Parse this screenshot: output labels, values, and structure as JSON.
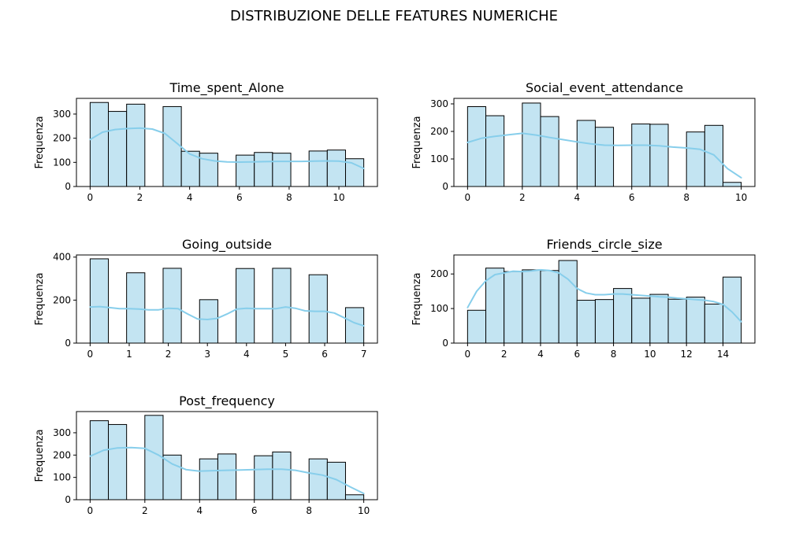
{
  "figure": {
    "suptitle": "DISTRIBUZIONE DELLE FEATURES NUMERICHE"
  },
  "colors": {
    "bar_fill": "#c3e4f2",
    "bar_edge": "#000000",
    "kde": "#87ceeb"
  },
  "chart_data": [
    {
      "type": "bar",
      "title": "Time_spent_Alone",
      "xlabel": "",
      "ylabel": "Frequenza",
      "xlim": [
        -0.55,
        11.55
      ],
      "ylim": [
        0,
        365
      ],
      "xticks": [
        0,
        2,
        4,
        6,
        8,
        10
      ],
      "yticks": [
        0,
        100,
        200,
        300
      ],
      "bin_edges": [
        0,
        0.733,
        1.467,
        2.2,
        2.933,
        3.667,
        4.4,
        5.133,
        5.867,
        6.6,
        7.333,
        8.067,
        8.8,
        9.533,
        10.267,
        11
      ],
      "values": [
        348,
        311,
        341,
        0,
        331,
        146,
        138,
        0,
        130,
        141,
        138,
        0,
        147,
        151,
        115
      ],
      "kde": {
        "x": [
          0,
          0.5,
          1,
          1.5,
          2,
          2.5,
          3,
          3.5,
          4,
          4.5,
          5,
          5.5,
          6,
          6.5,
          7,
          7.5,
          8,
          8.5,
          9,
          9.5,
          10,
          10.5,
          11
        ],
        "y": [
          195,
          225,
          236,
          240,
          242,
          238,
          220,
          178,
          135,
          115,
          106,
          102,
          101,
          102,
          103,
          104,
          104,
          104,
          105,
          106,
          105,
          98,
          75
        ]
      }
    },
    {
      "type": "bar",
      "title": "Social_event_attendance",
      "xlabel": "",
      "ylabel": "Frequenza",
      "xlim": [
        -0.5,
        10.5
      ],
      "ylim": [
        0,
        320
      ],
      "xticks": [
        0,
        2,
        4,
        6,
        8,
        10
      ],
      "yticks": [
        0,
        100,
        200,
        300
      ],
      "bin_edges": [
        0,
        0.667,
        1.333,
        2,
        2.667,
        3.333,
        4,
        4.667,
        5.333,
        6,
        6.667,
        7.333,
        8,
        8.667,
        9.333,
        10
      ],
      "values": [
        290,
        257,
        0,
        303,
        254,
        0,
        240,
        215,
        0,
        227,
        226,
        0,
        198,
        222,
        15
      ],
      "kde": {
        "x": [
          0,
          0.5,
          1,
          1.5,
          2,
          2.5,
          3,
          3.5,
          4,
          4.5,
          5,
          5.5,
          6,
          6.5,
          7,
          7.5,
          8,
          8.5,
          9,
          9.5,
          10
        ],
        "y": [
          160,
          175,
          182,
          188,
          193,
          187,
          178,
          170,
          162,
          155,
          150,
          149,
          150,
          150,
          148,
          143,
          140,
          135,
          115,
          65,
          32
        ]
      }
    },
    {
      "type": "bar",
      "title": "Going_outside",
      "xlabel": "",
      "ylabel": "Frequenza",
      "xlim": [
        -0.35,
        7.35
      ],
      "ylim": [
        0,
        410
      ],
      "xticks": [
        0,
        1,
        2,
        3,
        4,
        5,
        6,
        7
      ],
      "yticks": [
        0,
        200,
        400
      ],
      "bin_edges": [
        0,
        0.467,
        0.933,
        1.4,
        1.867,
        2.333,
        2.8,
        3.267,
        3.733,
        4.2,
        4.667,
        5.133,
        5.6,
        6.067,
        6.533,
        7
      ],
      "values": [
        392,
        0,
        327,
        0,
        348,
        0,
        202,
        0,
        347,
        0,
        348,
        0,
        318,
        0,
        165
      ],
      "kde": {
        "x": [
          0,
          0.25,
          0.5,
          0.75,
          1,
          1.25,
          1.5,
          1.75,
          2,
          2.25,
          2.5,
          2.75,
          3,
          3.25,
          3.5,
          3.75,
          4,
          4.25,
          4.5,
          4.75,
          5,
          5.25,
          5.5,
          5.75,
          6,
          6.25,
          6.5,
          6.75,
          7
        ],
        "y": [
          168,
          170,
          165,
          160,
          160,
          158,
          155,
          155,
          162,
          160,
          135,
          112,
          110,
          115,
          135,
          158,
          162,
          160,
          160,
          160,
          168,
          162,
          150,
          148,
          148,
          140,
          118,
          95,
          80
        ]
      }
    },
    {
      "type": "bar",
      "title": "Friends_circle_size",
      "xlabel": "",
      "ylabel": "Frequenza",
      "xlim": [
        -0.75,
        15.75
      ],
      "ylim": [
        0,
        255
      ],
      "xticks": [
        0,
        2,
        4,
        6,
        8,
        10,
        12,
        14
      ],
      "yticks": [
        0,
        100,
        200
      ],
      "bin_edges": [
        0,
        1,
        2,
        3,
        4,
        5,
        6,
        7,
        8,
        9,
        10,
        11,
        12,
        13,
        14,
        15
      ],
      "values": [
        95,
        217,
        207,
        212,
        210,
        239,
        124,
        126,
        158,
        130,
        141,
        127,
        133,
        113,
        191
      ],
      "kde": {
        "x": [
          0,
          0.5,
          1,
          1.5,
          2,
          2.5,
          3,
          3.5,
          4,
          4.5,
          5,
          5.5,
          6,
          6.5,
          7,
          7.5,
          8,
          8.5,
          9,
          9.5,
          10,
          10.5,
          11,
          11.5,
          12,
          12.5,
          13,
          13.5,
          14,
          14.5,
          15
        ],
        "y": [
          103,
          150,
          180,
          198,
          203,
          208,
          207,
          209,
          212,
          210,
          203,
          185,
          158,
          145,
          140,
          140,
          142,
          142,
          140,
          138,
          136,
          134,
          133,
          130,
          128,
          126,
          124,
          120,
          112,
          90,
          62
        ]
      }
    },
    {
      "type": "bar",
      "title": "Post_frequency",
      "xlabel": "",
      "ylabel": "Frequenza",
      "xlim": [
        -0.5,
        10.5
      ],
      "ylim": [
        0,
        395
      ],
      "xticks": [
        0,
        2,
        4,
        6,
        8,
        10
      ],
      "yticks": [
        0,
        100,
        200,
        300
      ],
      "bin_edges": [
        0,
        0.667,
        1.333,
        2,
        2.667,
        3.333,
        4,
        4.667,
        5.333,
        6,
        6.667,
        7.333,
        8,
        8.667,
        9.333,
        10
      ],
      "values": [
        354,
        337,
        0,
        378,
        200,
        0,
        183,
        205,
        0,
        197,
        214,
        0,
        183,
        168,
        22
      ],
      "kde": {
        "x": [
          0,
          0.5,
          1,
          1.5,
          2,
          2.5,
          3,
          3.5,
          4,
          4.5,
          5,
          5.5,
          6,
          6.5,
          7,
          7.5,
          8,
          8.5,
          9,
          9.5,
          10
        ],
        "y": [
          195,
          222,
          232,
          234,
          230,
          200,
          160,
          135,
          128,
          130,
          132,
          133,
          135,
          137,
          137,
          132,
          120,
          110,
          90,
          58,
          28
        ]
      }
    }
  ]
}
